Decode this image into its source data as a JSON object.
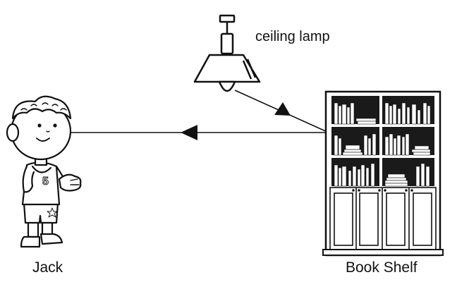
{
  "labels": {
    "lamp": "ceiling lamp",
    "person": "Jack",
    "shelf": "Book Shelf"
  },
  "colors": {
    "ink": "#111111",
    "background": "#ffffff",
    "shelf_interior": "#1a1a1a"
  }
}
